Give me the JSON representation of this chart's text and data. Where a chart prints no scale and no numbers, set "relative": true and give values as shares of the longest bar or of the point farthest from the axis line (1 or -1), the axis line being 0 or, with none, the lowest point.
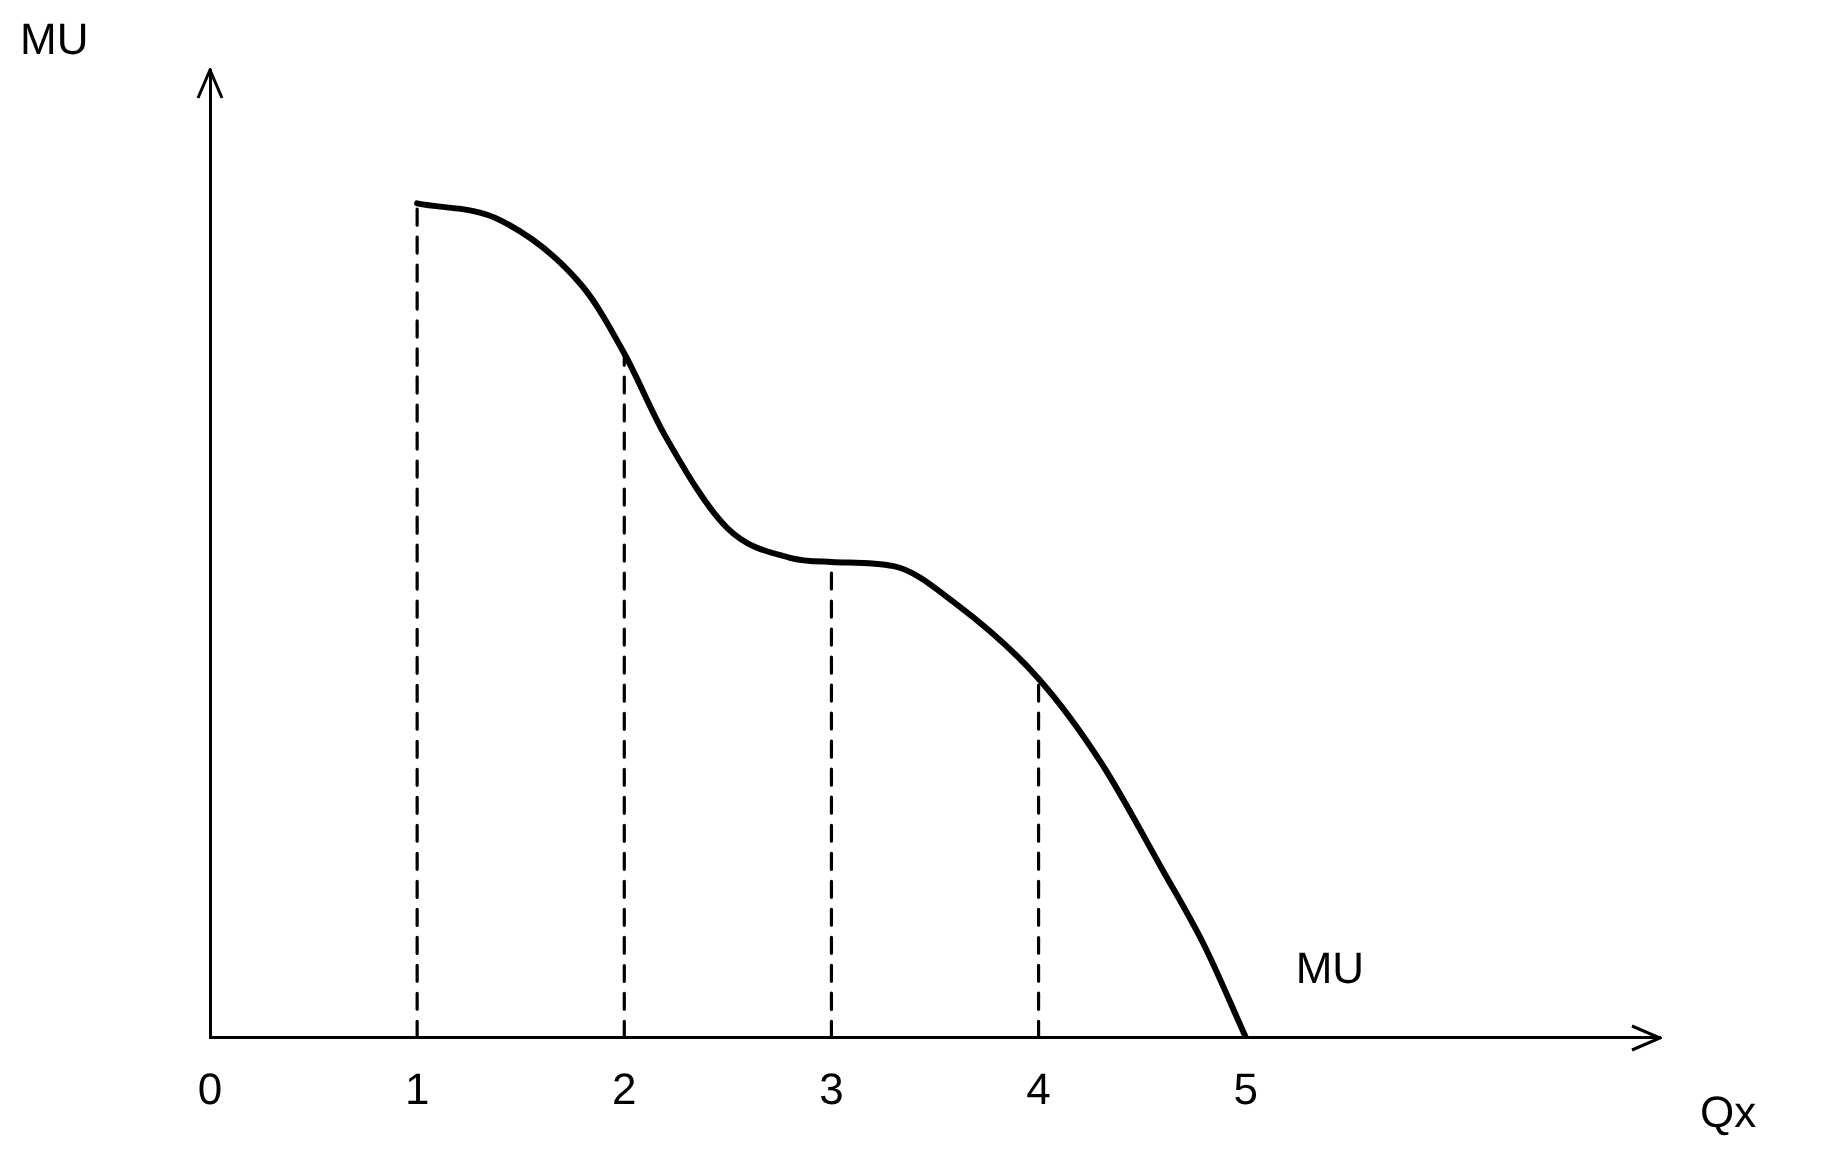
{
  "chart_data": {
    "type": "line",
    "relative": true,
    "xlabel": "Qx",
    "ylabel": "MU",
    "xlim": [
      0,
      7
    ],
    "xticks": [
      0,
      1,
      2,
      3,
      4,
      5
    ],
    "grid": false,
    "legend": false,
    "marker": "none",
    "annotations": [
      "MU"
    ],
    "series": [
      {
        "color": "#000000",
        "x": [
          1,
          1.4,
          1.8,
          2,
          2.2,
          2.5,
          2.8,
          3,
          3.3,
          3.6,
          4,
          4.3,
          4.6,
          4.8,
          5
        ],
        "values": [
          1,
          0.98,
          0.9,
          0.82,
          0.72,
          0.61,
          0.575,
          0.57,
          0.565,
          0.52,
          0.43,
          0.33,
          0.2,
          0.11,
          0
        ],
        "line_style": "solid"
      },
      {
        "color": "#000000",
        "x": [
          1,
          1
        ],
        "values": [
          0,
          1
        ],
        "line_style": "dashed"
      },
      {
        "color": "#000000",
        "x": [
          2,
          2
        ],
        "values": [
          0,
          0.82
        ],
        "line_style": "dashed"
      },
      {
        "color": "#000000",
        "x": [
          3,
          3
        ],
        "values": [
          0,
          0.57
        ],
        "line_style": "dashed"
      },
      {
        "color": "#000000",
        "x": [
          4,
          4
        ],
        "values": [
          0,
          0.43
        ],
        "line_style": "dashed"
      }
    ]
  }
}
